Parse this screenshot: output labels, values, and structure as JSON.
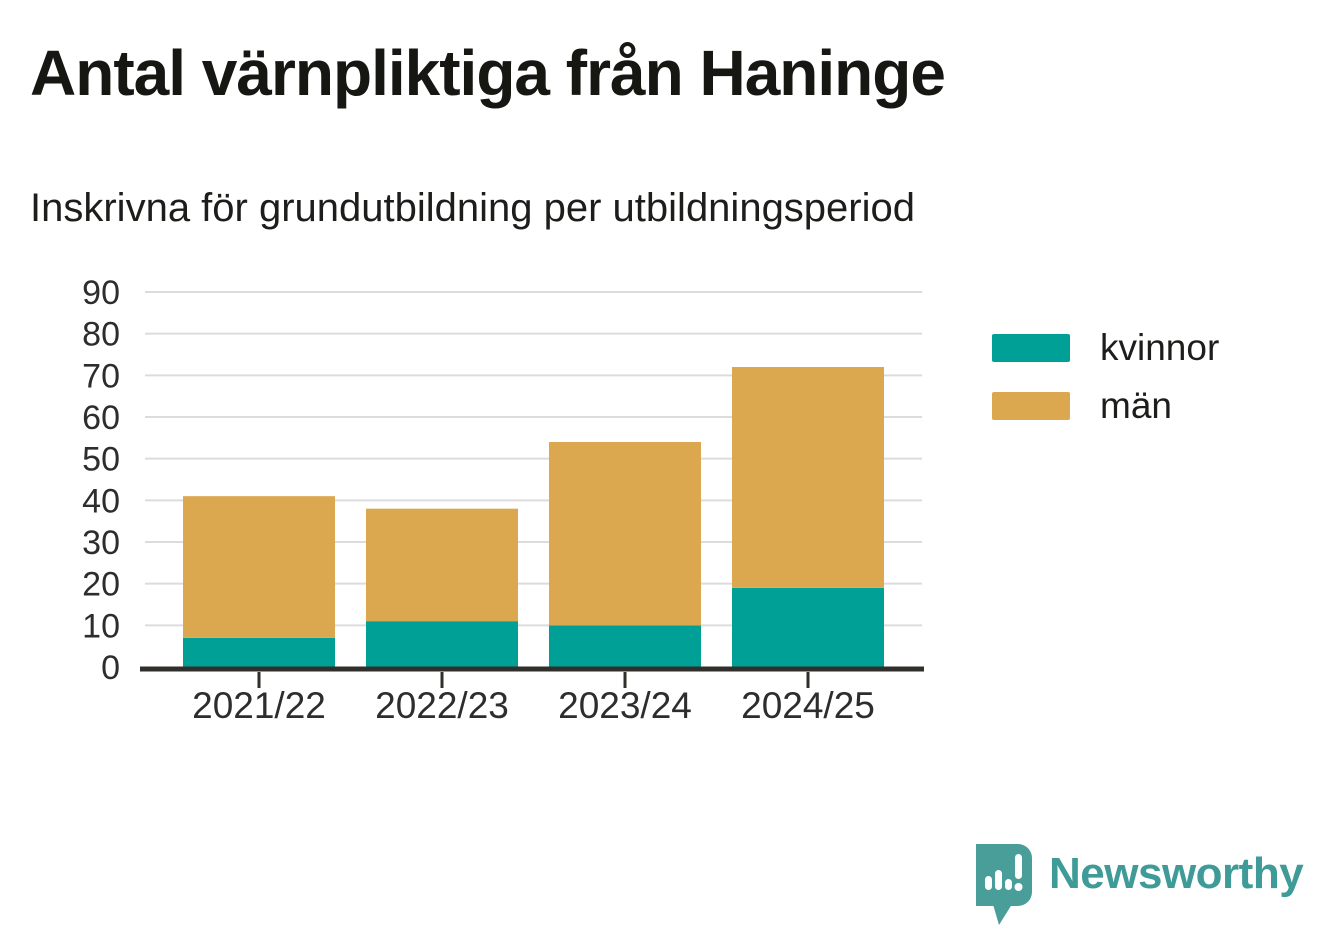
{
  "header": {
    "title": "Antal värnpliktiga från Haninge",
    "subtitle": "Inskrivna för grundutbildning per utbildningsperiod"
  },
  "chart_data": {
    "type": "bar",
    "stacked": true,
    "title": "Antal värnpliktiga från Haninge",
    "subtitle": "Inskrivna för grundutbildning per utbildningsperiod",
    "categories": [
      "2021/22",
      "2022/23",
      "2023/24",
      "2024/25"
    ],
    "series": [
      {
        "name": "kvinnor",
        "color": "#00a096",
        "values": [
          7,
          11,
          10,
          19
        ]
      },
      {
        "name": "män",
        "color": "#dba84f",
        "values": [
          34,
          27,
          44,
          53
        ]
      }
    ],
    "stack_totals": [
      41,
      38,
      54,
      72
    ],
    "xlabel": "",
    "ylabel": "",
    "ylim": [
      0,
      90
    ],
    "yticks": [
      0,
      10,
      20,
      30,
      40,
      50,
      60,
      70,
      80,
      90
    ],
    "grid": true,
    "legend_position": "right"
  },
  "branding": {
    "brand": "Newsworthy",
    "brand_color": "#3e9b97"
  }
}
